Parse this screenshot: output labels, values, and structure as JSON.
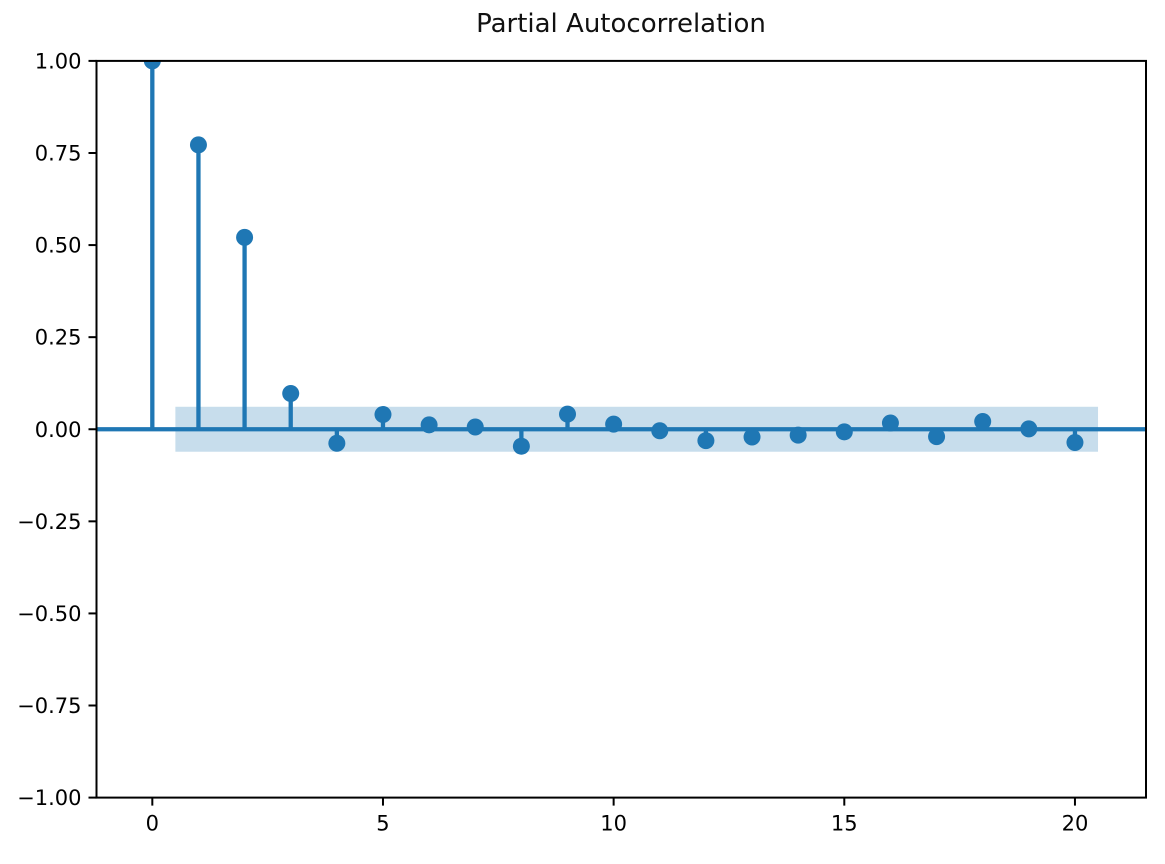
{
  "chart_data": {
    "type": "stem",
    "title": "Partial Autocorrelation",
    "xlabel": "",
    "ylabel": "",
    "x": [
      0,
      1,
      2,
      3,
      4,
      5,
      6,
      7,
      8,
      9,
      10,
      11,
      12,
      13,
      14,
      15,
      16,
      17,
      18,
      19,
      20
    ],
    "values": [
      1.0,
      0.772,
      0.521,
      0.097,
      -0.038,
      0.04,
      0.012,
      0.006,
      -0.046,
      0.041,
      0.014,
      -0.004,
      -0.031,
      -0.021,
      -0.016,
      -0.007,
      0.017,
      -0.02,
      0.021,
      0.001,
      -0.036
    ],
    "confidence_band": {
      "upper": 0.061,
      "lower": -0.061,
      "x_start": 0.5,
      "x_end": 20.5
    },
    "zero_line": 0.0,
    "xlim": [
      -1.21,
      21.54
    ],
    "ylim": [
      -1.0,
      1.0
    ],
    "xticks": {
      "values": [
        0,
        5,
        10,
        15,
        20
      ],
      "labels": [
        "0",
        "5",
        "10",
        "15",
        "20"
      ]
    },
    "yticks": {
      "values": [
        1.0,
        0.75,
        0.5,
        0.25,
        0.0,
        -0.25,
        -0.5,
        -0.75,
        -1.0
      ],
      "labels": [
        "1.00",
        "0.75",
        "0.50",
        "0.25",
        "0.00",
        "−0.25",
        "−0.50",
        "−0.75",
        "−1.00"
      ]
    },
    "grid": false,
    "legend": null,
    "colors": {
      "stem": "#1f77b4",
      "marker": "#1f77b4",
      "band_base": "#1f77b4",
      "band_alpha": 0.25,
      "band_flat": "#c7ddec",
      "axis": "#000000",
      "tick_text": "#000000",
      "title_text": "#111111",
      "background": "#ffffff"
    }
  }
}
